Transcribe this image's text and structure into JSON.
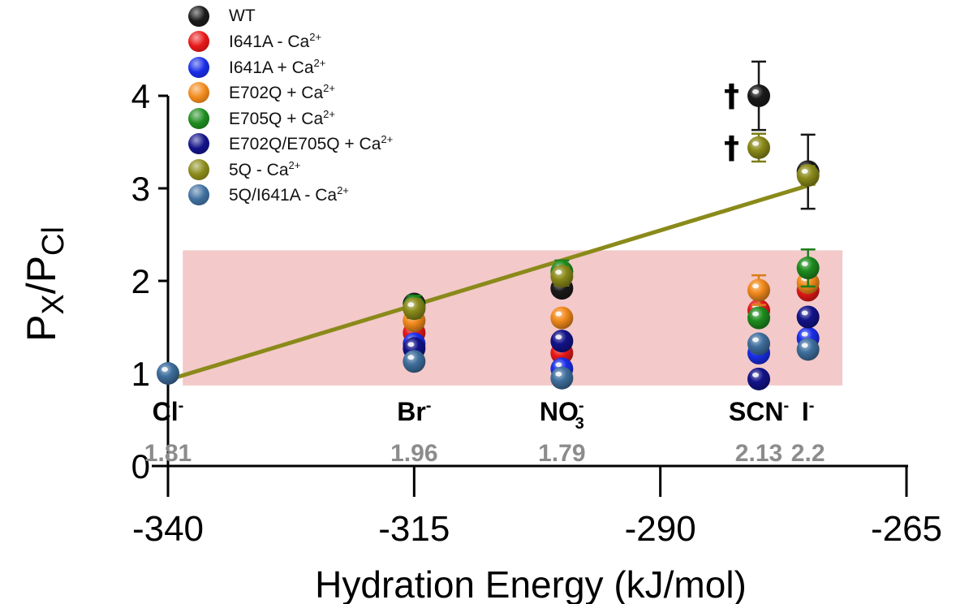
{
  "chart_data": {
    "type": "scatter",
    "xlabel": "Hydration Energy (kJ/mol)",
    "ylabel": "PX/PCl",
    "xlim": [
      -340,
      -265
    ],
    "ylim": [
      0,
      4
    ],
    "x_ticks": [
      "-340",
      "-315",
      "-290",
      "-265"
    ],
    "y_ticks": [
      "0",
      "1",
      "2",
      "3",
      "4"
    ],
    "legend_position": "top-left",
    "shaded_band": {
      "y_from": 0.87,
      "y_to": 2.33,
      "x_from": -338.5,
      "x_to": -271.5,
      "color": "#f3c9c9"
    },
    "anions": [
      {
        "name": "Cl",
        "charge": "-",
        "sub": "",
        "x": -340,
        "value_label": "1.81"
      },
      {
        "name": "Br",
        "charge": "-",
        "sub": "",
        "x": -315,
        "value_label": "1.96"
      },
      {
        "name": "NO",
        "charge": "-",
        "sub": "3",
        "x": -300,
        "value_label": "1.79"
      },
      {
        "name": "SCN",
        "charge": "-",
        "sub": "",
        "x": -280,
        "value_label": "2.13"
      },
      {
        "name": "I",
        "charge": "-",
        "sub": "",
        "x": -275,
        "value_label": "2.2"
      }
    ],
    "fit_line": {
      "color": "#8a8a1a",
      "x": [
        -340,
        -275
      ],
      "y": [
        0.93,
        3.03
      ]
    },
    "daggers": [
      {
        "symbol": "†",
        "x": -280,
        "y": 4.0
      },
      {
        "symbol": "†",
        "x": -280,
        "y": 3.44
      }
    ],
    "series": [
      {
        "name": "WT",
        "sup": "",
        "color": "#1a1a1a",
        "points": [
          {
            "x": -315,
            "y": 1.75,
            "err": 0.05
          },
          {
            "x": -300,
            "y": 1.92,
            "err": 0.07
          },
          {
            "x": -280,
            "y": 4.0,
            "err": 0.37
          },
          {
            "x": -275,
            "y": 3.18,
            "err": 0.4
          }
        ]
      },
      {
        "name": "I641A - Ca",
        "sup": "2+",
        "color": "#e81818",
        "points": [
          {
            "x": -315,
            "y": 1.44,
            "err": 0.06
          },
          {
            "x": -300,
            "y": 1.22,
            "err": 0.06
          },
          {
            "x": -280,
            "y": 1.68,
            "err": 0.06
          },
          {
            "x": -275,
            "y": 1.9,
            "err": 0.06
          }
        ]
      },
      {
        "name": "I641A + Ca",
        "sup": "2+",
        "color": "#1a2ee8",
        "points": [
          {
            "x": -315,
            "y": 1.32,
            "err": 0.05
          },
          {
            "x": -300,
            "y": 1.05,
            "err": 0.05
          },
          {
            "x": -280,
            "y": 1.22,
            "err": 0.05
          },
          {
            "x": -275,
            "y": 1.38,
            "err": 0.05
          }
        ]
      },
      {
        "name": "E702Q + Ca",
        "sup": "2+",
        "color": "#f28a1c",
        "points": [
          {
            "x": -315,
            "y": 1.57,
            "err": 0.06
          },
          {
            "x": -300,
            "y": 1.6,
            "err": 0.06
          },
          {
            "x": -280,
            "y": 1.9,
            "err": 0.16
          },
          {
            "x": -275,
            "y": 1.98,
            "err": 0.08
          }
        ]
      },
      {
        "name": "E705Q + Ca",
        "sup": "2+",
        "color": "#1e8c1e",
        "points": [
          {
            "x": -315,
            "y": 1.72,
            "err": 0.12
          },
          {
            "x": -300,
            "y": 2.1,
            "err": 0.12
          },
          {
            "x": -280,
            "y": 1.6,
            "err": 0.08
          },
          {
            "x": -275,
            "y": 2.14,
            "err": 0.2
          }
        ]
      },
      {
        "name": "E702Q/E705Q + Ca",
        "sup": "2+",
        "color": "#13138a",
        "points": [
          {
            "x": -315,
            "y": 1.27,
            "err": 0.05
          },
          {
            "x": -300,
            "y": 1.35,
            "err": 0.05
          },
          {
            "x": -280,
            "y": 0.94,
            "err": 0.05
          },
          {
            "x": -275,
            "y": 1.61,
            "err": 0.05
          }
        ]
      },
      {
        "name": "5Q - Ca",
        "sup": "2+",
        "color": "#8a8a1a",
        "points": [
          {
            "x": -315,
            "y": 1.7,
            "err": 0.1
          },
          {
            "x": -300,
            "y": 2.05,
            "err": 0.1
          },
          {
            "x": -280,
            "y": 3.44,
            "err": 0.15
          },
          {
            "x": -275,
            "y": 3.14,
            "err": 0.1
          }
        ]
      },
      {
        "name": "5Q/I641A - Ca",
        "sup": "2+",
        "color": "#3f6f9e",
        "points": [
          {
            "x": -340,
            "y": 1.0,
            "err": 0.03
          },
          {
            "x": -315,
            "y": 1.13,
            "err": 0.04
          },
          {
            "x": -300,
            "y": 0.95,
            "err": 0.04
          },
          {
            "x": -280,
            "y": 1.32,
            "err": 0.05
          },
          {
            "x": -275,
            "y": 1.26,
            "err": 0.05
          }
        ]
      }
    ]
  }
}
